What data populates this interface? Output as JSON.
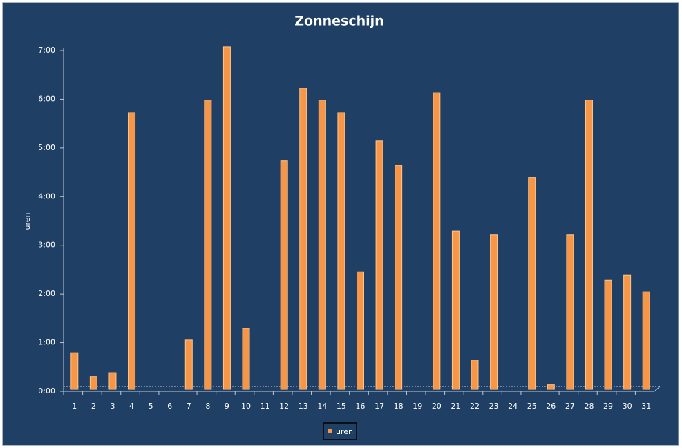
{
  "chart_data": {
    "type": "bar",
    "title": "Zonneschijn",
    "y_label": "uren",
    "categories": [
      "1",
      "2",
      "3",
      "4",
      "5",
      "6",
      "7",
      "8",
      "9",
      "10",
      "11",
      "12",
      "13",
      "14",
      "15",
      "16",
      "17",
      "18",
      "19",
      "20",
      "21",
      "22",
      "23",
      "24",
      "25",
      "26",
      "27",
      "28",
      "29",
      "30",
      "31"
    ],
    "series": [
      {
        "name": "uren",
        "color": "#f79646",
        "values": [
          0.75,
          0.26,
          0.34,
          5.68,
          0,
          0,
          1.01,
          5.94,
          7.03,
          1.25,
          0,
          4.69,
          6.18,
          5.94,
          5.68,
          2.41,
          5.1,
          4.6,
          0,
          6.09,
          3.25,
          0.6,
          3.17,
          0,
          4.35,
          0.09,
          3.17,
          5.94,
          2.24,
          2.34,
          2.0
        ]
      }
    ],
    "ylim": [
      0,
      7
    ],
    "yticks": [
      {
        "value": 0,
        "label": "0:00"
      },
      {
        "value": 1,
        "label": "1:00"
      },
      {
        "value": 2,
        "label": "2:00"
      },
      {
        "value": 3,
        "label": "3:00"
      },
      {
        "value": 4,
        "label": "4:00"
      },
      {
        "value": 5,
        "label": "5:00"
      },
      {
        "value": 6,
        "label": "6:00"
      },
      {
        "value": 7,
        "label": "7:00"
      }
    ],
    "legend": "bottom"
  }
}
